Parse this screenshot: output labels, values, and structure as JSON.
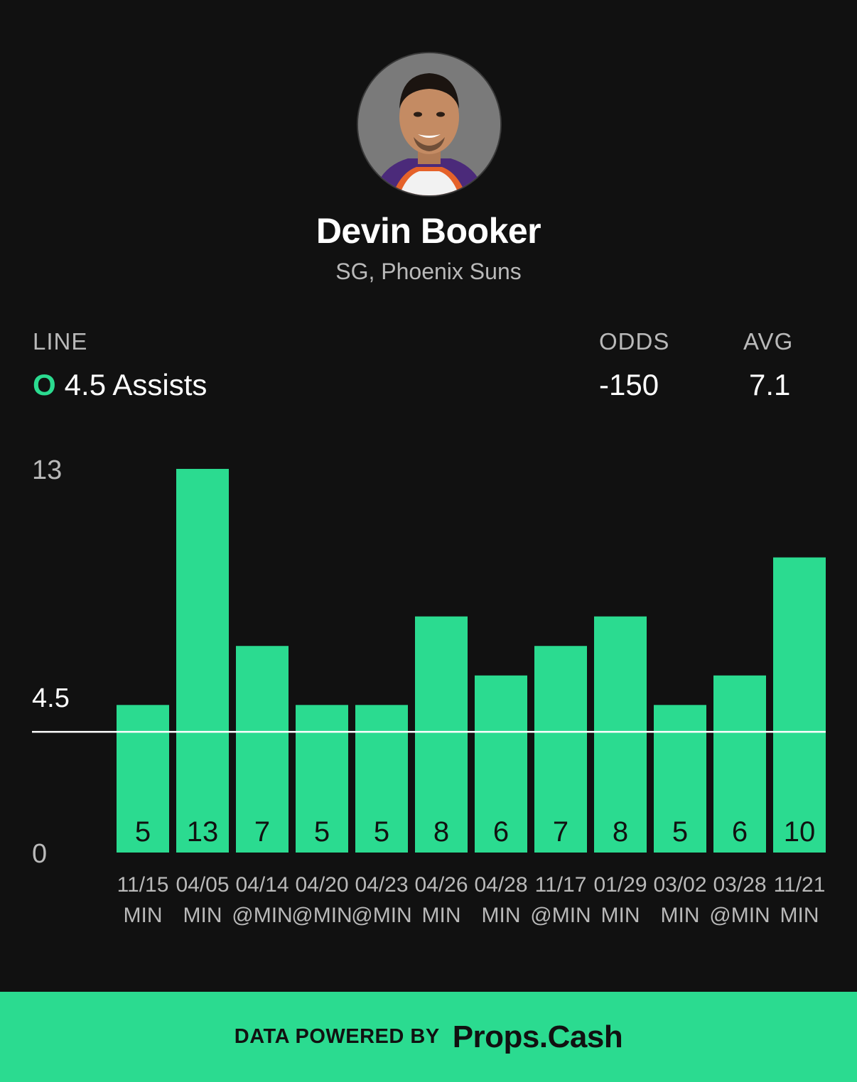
{
  "player": {
    "name": "Devin Booker",
    "subtitle": "SG, Phoenix Suns"
  },
  "stats": {
    "line_label": "LINE",
    "line_marker": "O",
    "line_value": "4.5 Assists",
    "odds_label": "ODDS",
    "odds_value": "-150",
    "avg_label": "AVG",
    "avg_value": "7.1"
  },
  "colors": {
    "accent": "#2bdb90",
    "background": "#111111",
    "line": "#ffffff",
    "muted_text": "#b9b9b9"
  },
  "chart_data": {
    "type": "bar",
    "categories": [
      "11/15",
      "04/05",
      "04/14",
      "04/20",
      "04/23",
      "04/26",
      "04/28",
      "11/17",
      "01/29",
      "03/02",
      "03/28",
      "11/21"
    ],
    "opponents": [
      "MIN",
      "MIN",
      "@MIN",
      "@MIN",
      "@MIN",
      "MIN",
      "MIN",
      "@MIN",
      "MIN",
      "MIN",
      "@MIN",
      "MIN"
    ],
    "values": [
      5,
      13,
      7,
      5,
      5,
      8,
      6,
      7,
      8,
      5,
      6,
      10
    ],
    "ylim": [
      0,
      13
    ],
    "y_ticks": [
      "13",
      "4.5",
      "0"
    ],
    "reference_line": 4.5,
    "grid": false
  },
  "footer": {
    "lead": "DATA POWERED BY",
    "brand": "Props.Cash"
  }
}
